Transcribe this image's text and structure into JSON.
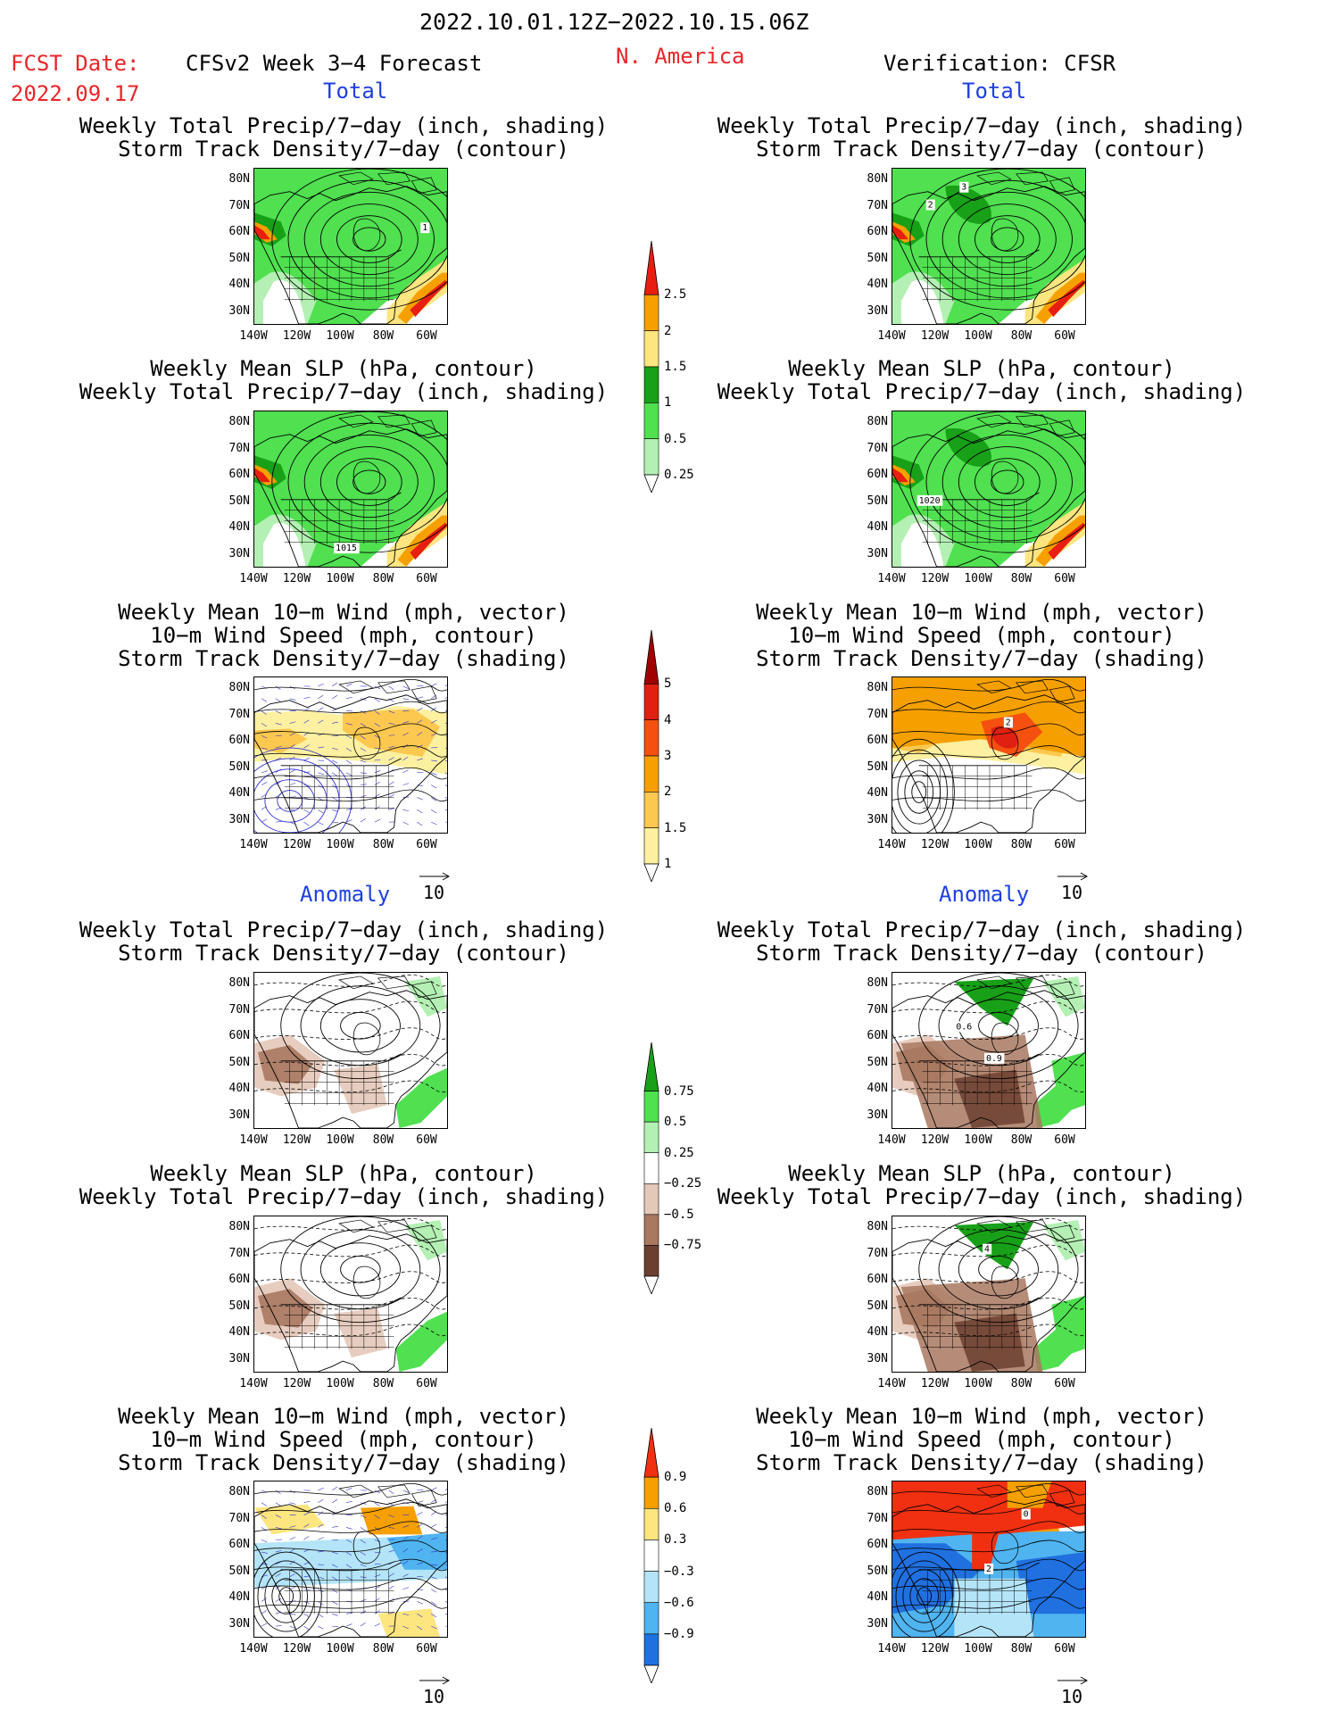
{
  "header": {
    "date_range": "2022.10.01.12Z−2022.10.15.06Z",
    "fcst_date_label": "FCST Date:",
    "fcst_date_value": "2022.09.17",
    "model_title": "CFSv2 Week 3−4 Forecast",
    "region": "N. America",
    "verification": "Verification: CFSR"
  },
  "sections": {
    "total": "Total",
    "anomaly": "Anomaly"
  },
  "panel_titles": {
    "precip_storm": [
      "Weekly Total Precip/7−day (inch, shading)",
      "Storm Track Density/7−day (contour)"
    ],
    "slp_precip": [
      "Weekly Mean SLP (hPa, contour)",
      "Weekly Total Precip/7−day (inch, shading)"
    ],
    "wind_storm": [
      "Weekly Mean 10−m Wind (mph, vector)",
      "10−m Wind Speed (mph, contour)",
      "Storm Track Density/7−day (shading)"
    ]
  },
  "axes": {
    "lat_labels": [
      "80N",
      "70N",
      "60N",
      "50N",
      "40N",
      "30N"
    ],
    "lon_labels": [
      "140W",
      "120W",
      "100W",
      "80W",
      "60W"
    ]
  },
  "vector_ref": "10",
  "map_labels": {
    "fc_precip_contour": "1",
    "obs_precip_contour_a": "3",
    "obs_precip_contour_b": "2",
    "fc_slp_contour": "1015",
    "obs_slp_contour": "1020",
    "obs_wind_contour": "2",
    "obs_anom_contour_a": "0.6",
    "obs_anom_contour_b": "0.9",
    "obs_slp_anom_contour": "4",
    "obs_wind_anom_contour": "0"
  },
  "colorbars": {
    "precip_total": {
      "labels": [
        "2.5",
        "2",
        "1.5",
        "1",
        "0.5",
        "0.25"
      ],
      "colors": [
        "#e81e10",
        "#f5a000",
        "#fde580",
        "#18a018",
        "#50e050",
        "#b4f0b4"
      ]
    },
    "storm_total": {
      "labels": [
        "5",
        "4",
        "3",
        "2",
        "1.5",
        "1"
      ],
      "colors": [
        "#a00000",
        "#e02010",
        "#f55010",
        "#f5a000",
        "#fcc850",
        "#fdf0a0"
      ]
    },
    "precip_anom": {
      "labels": [
        "0.75",
        "0.5",
        "0.25",
        "−0.25",
        "−0.5",
        "−0.75"
      ],
      "colors": [
        "#18a018",
        "#50e050",
        "#b4f0b4",
        "#ffffff",
        "#e4c8b8",
        "#a87860",
        "#6c4030"
      ]
    },
    "storm_anom": {
      "labels": [
        "0.9",
        "0.6",
        "0.3",
        "−0.3",
        "−0.6",
        "−0.9"
      ],
      "colors": [
        "#f03010",
        "#f5a000",
        "#fde580",
        "#ffffff",
        "#b4e4f8",
        "#50b4f0",
        "#2070e0"
      ]
    }
  },
  "colors": {
    "header_red": "#e8262a",
    "section_blue": "#1f3fe0"
  }
}
